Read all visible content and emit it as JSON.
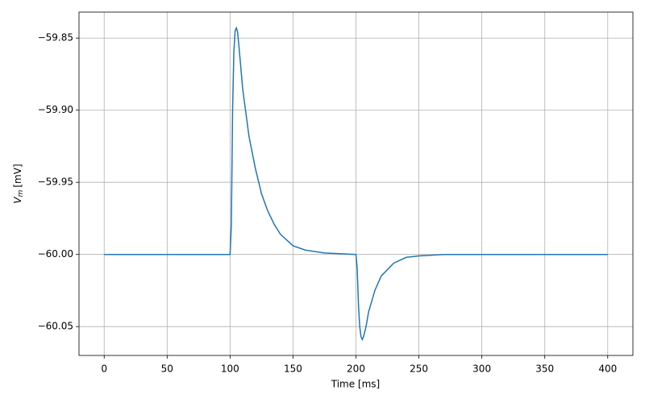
{
  "chart_data": {
    "type": "line",
    "x_label": "Time [ms]",
    "y_label_var": "V",
    "y_label_sub": "m",
    "y_label_unit": "[mV]",
    "x": [
      0,
      50,
      100,
      101,
      102,
      103,
      104,
      105,
      106,
      108,
      110,
      115,
      120,
      125,
      130,
      135,
      140,
      150,
      160,
      175,
      200,
      201,
      202,
      203,
      204,
      205,
      206,
      208,
      210,
      215,
      220,
      230,
      240,
      250,
      270,
      300,
      350,
      400
    ],
    "series": [
      {
        "color": "#1f77b4",
        "values": [
          -60.0,
          -60.0,
          -60.0,
          -59.98,
          -59.9,
          -59.86,
          -59.845,
          -59.843,
          -59.846,
          -59.865,
          -59.885,
          -59.918,
          -59.94,
          -59.958,
          -59.97,
          -59.979,
          -59.986,
          -59.994,
          -59.997,
          -59.999,
          -60.0,
          -60.01,
          -60.035,
          -60.05,
          -60.057,
          -60.059,
          -60.057,
          -60.05,
          -60.04,
          -60.025,
          -60.015,
          -60.006,
          -60.002,
          -60.001,
          -60.0,
          -60.0,
          -60.0,
          -60.0
        ]
      }
    ],
    "xlim": [
      -20,
      420
    ],
    "xticks": [
      0,
      50,
      100,
      150,
      200,
      250,
      300,
      350,
      400
    ],
    "ylim": [
      -60.07,
      -59.832
    ],
    "yticks": [
      {
        "value": -60.05,
        "label": "−60.05"
      },
      {
        "value": -60.0,
        "label": "−60.00"
      },
      {
        "value": -59.95,
        "label": "−59.95"
      },
      {
        "value": -59.9,
        "label": "−59.90"
      },
      {
        "value": -59.85,
        "label": "−59.85"
      }
    ],
    "grid": true
  }
}
